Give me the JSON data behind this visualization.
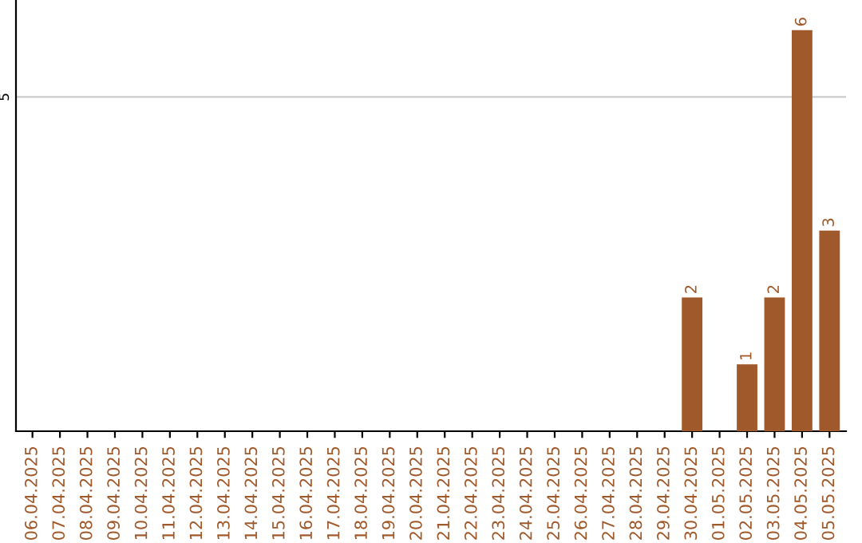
{
  "chart_data": {
    "type": "bar",
    "categories": [
      "06.04.2025",
      "07.04.2025",
      "08.04.2025",
      "09.04.2025",
      "10.04.2025",
      "11.04.2025",
      "12.04.2025",
      "13.04.2025",
      "14.04.2025",
      "15.04.2025",
      "16.04.2025",
      "17.04.2025",
      "18.04.2025",
      "19.04.2025",
      "20.04.2025",
      "21.04.2025",
      "22.04.2025",
      "23.04.2025",
      "24.04.2025",
      "25.04.2025",
      "26.04.2025",
      "27.04.2025",
      "28.04.2025",
      "29.04.2025",
      "30.04.2025",
      "01.05.2025",
      "02.05.2025",
      "03.05.2025",
      "04.05.2025",
      "05.05.2025"
    ],
    "values": [
      null,
      null,
      null,
      null,
      null,
      null,
      null,
      null,
      null,
      null,
      null,
      null,
      null,
      null,
      null,
      null,
      null,
      null,
      null,
      null,
      null,
      null,
      null,
      null,
      2,
      null,
      1,
      2,
      6,
      3
    ],
    "data_labels": true,
    "color": "#a0592a",
    "ylim": [
      0,
      6.45
    ],
    "yticks": [
      5
    ],
    "grid": "y"
  }
}
